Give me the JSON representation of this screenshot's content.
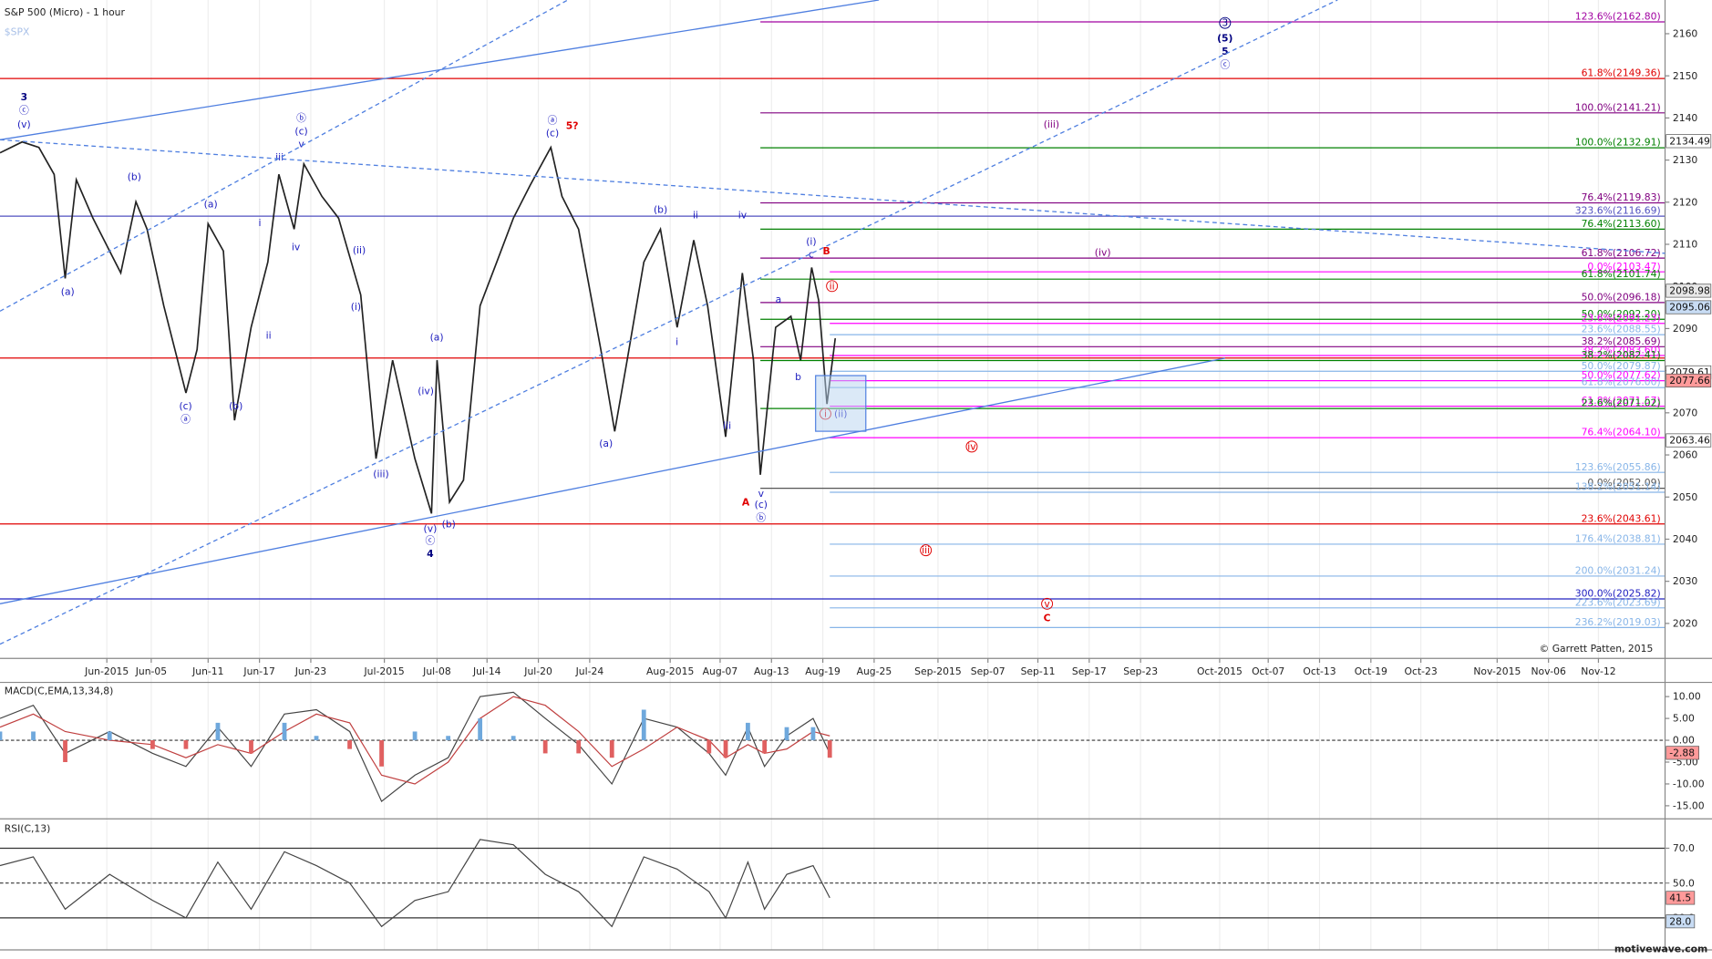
{
  "chart_data": [
    {
      "type": "line",
      "title": "S&P 500 (Micro) - 1 hour",
      "subtitle": "$SPX",
      "credit": "© Garrett Patten, 2015",
      "color": "#222222",
      "xlim": [
        0,
        120
      ],
      "ylim": [
        2011.7,
        2168.0
      ],
      "yticks": [
        2020,
        2030,
        2040,
        2050,
        2060,
        2070,
        2080,
        2090,
        2100,
        2110,
        2120,
        2130,
        2140,
        2150,
        2160
      ],
      "xticks": [
        {
          "value": 7.7,
          "label": "Jun-2015"
        },
        {
          "value": 10.9,
          "label": "Jun-05"
        },
        {
          "value": 15.0,
          "label": "Jun-11"
        },
        {
          "value": 18.7,
          "label": "Jun-17"
        },
        {
          "value": 22.4,
          "label": "Jun-23"
        },
        {
          "value": 27.7,
          "label": "Jul-2015"
        },
        {
          "value": 31.5,
          "label": "Jul-08"
        },
        {
          "value": 35.1,
          "label": "Jul-14"
        },
        {
          "value": 38.8,
          "label": "Jul-20"
        },
        {
          "value": 42.5,
          "label": "Jul-24"
        },
        {
          "value": 48.3,
          "label": "Aug-2015"
        },
        {
          "value": 51.9,
          "label": "Aug-07"
        },
        {
          "value": 55.6,
          "label": "Aug-13"
        },
        {
          "value": 59.3,
          "label": "Aug-19"
        },
        {
          "value": 63.0,
          "label": "Aug-25"
        },
        {
          "value": 67.6,
          "label": "Sep-2015"
        },
        {
          "value": 71.2,
          "label": "Sep-07"
        },
        {
          "value": 74.8,
          "label": "Sep-11"
        },
        {
          "value": 78.5,
          "label": "Sep-17"
        },
        {
          "value": 82.2,
          "label": "Sep-23"
        },
        {
          "value": 87.9,
          "label": "Oct-2015"
        },
        {
          "value": 91.4,
          "label": "Oct-07"
        },
        {
          "value": 95.1,
          "label": "Oct-13"
        },
        {
          "value": 98.8,
          "label": "Oct-19"
        },
        {
          "value": 102.4,
          "label": "Oct-23"
        },
        {
          "value": 107.9,
          "label": "Nov-2015"
        },
        {
          "value": 111.6,
          "label": "Nov-06"
        },
        {
          "value": 115.2,
          "label": "Nov-12"
        }
      ],
      "x": [
        0,
        1.6,
        2.8,
        3.9,
        4.7,
        5.5,
        6.7,
        7.9,
        8.7,
        9.8,
        10.6,
        11.8,
        13.4,
        14.2,
        15.0,
        16.1,
        16.9,
        18.1,
        19.3,
        20.1,
        21.2,
        21.9,
        23.2,
        24.4,
        26.0,
        27.1,
        28.3,
        29.9,
        31.1,
        31.5,
        32.4,
        33.4,
        34.6,
        35.8,
        37.0,
        38.2,
        39.7,
        40.5,
        41.7,
        43.3,
        44.3,
        45.2,
        46.4,
        47.6,
        48.8,
        50.0,
        51.0,
        52.3,
        53.5,
        54.3,
        54.8,
        55.9,
        57.0,
        57.7,
        58.5,
        59.0,
        59.6,
        60.2
      ],
      "values": [
        2131.7,
        2134.3,
        2133.0,
        2126.6,
        2101.9,
        2125.3,
        2116.2,
        2108.4,
        2103.2,
        2120.1,
        2113.6,
        2095.4,
        2074.7,
        2085.0,
        2114.9,
        2108.4,
        2068.2,
        2090.3,
        2105.8,
        2126.6,
        2113.6,
        2129.1,
        2121.4,
        2116.2,
        2098.0,
        2059.1,
        2082.5,
        2059.1,
        2046.1,
        2082.5,
        2048.8,
        2054.0,
        2095.4,
        2105.8,
        2116.2,
        2124.0,
        2133.0,
        2121.4,
        2113.6,
        2085.0,
        2065.6,
        2082.5,
        2105.8,
        2113.6,
        2090.3,
        2111.0,
        2095.4,
        2064.3,
        2103.2,
        2082.5,
        2055.3,
        2090.3,
        2092.9,
        2082.5,
        2104.5,
        2096.7,
        2072.1,
        2087.7
      ],
      "levels": [
        {
          "label": "123.6%(2162.80)",
          "value": 2162.8,
          "color": "#a000a0",
          "start": 54.8
        },
        {
          "label": "61.8%(2149.36)",
          "value": 2149.36,
          "color": "#e00000",
          "start": 0
        },
        {
          "label": "100.0%(2141.21)",
          "value": 2141.21,
          "color": "#800080",
          "start": 54.8
        },
        {
          "label": "100.0%(2132.91)",
          "value": 2132.91,
          "color": "#008000",
          "start": 54.8
        },
        {
          "label": "76.4%(2119.83)",
          "value": 2119.83,
          "color": "#800080",
          "start": 54.8
        },
        {
          "label": "323.6%(2116.69)",
          "value": 2116.69,
          "color": "#5050c0",
          "start": 0
        },
        {
          "label": "76.4%(2113.60)",
          "value": 2113.6,
          "color": "#008000",
          "start": 54.8
        },
        {
          "label": "61.8%(2106.72)",
          "value": 2106.72,
          "color": "#800080",
          "start": 54.8
        },
        {
          "label": "0.0%(2103.47)",
          "value": 2103.47,
          "color": "#ff00ff",
          "start": 59.8
        },
        {
          "label": "61.8%(2101.74)",
          "value": 2101.74,
          "color": "#008000",
          "start": 54.8
        },
        {
          "label": "50.0%(2096.18)",
          "value": 2096.18,
          "color": "#800080",
          "start": 54.8
        },
        {
          "label": "50.0%(2092.20)",
          "value": 2092.2,
          "color": "#008000",
          "start": 54.8
        },
        {
          "label": "23.6%(2091.23)",
          "value": 2091.23,
          "color": "#ff00ff",
          "start": 59.8
        },
        {
          "label": "23.6%(2088.55)",
          "value": 2088.55,
          "color": "#87b5e8",
          "start": 59.8
        },
        {
          "label": "38.2%(2085.69)",
          "value": 2085.69,
          "color": "#800080",
          "start": 54.8
        },
        {
          "label": "38.2%(2083.60)",
          "value": 2083.6,
          "color": "#ff00ff",
          "start": 59.8
        },
        {
          "value": 2083,
          "color": "#e00000",
          "start": 0
        },
        {
          "label": "38.2%(2082.41)",
          "value": 2082.41,
          "color": "#008000",
          "start": 54.8
        },
        {
          "label": "50.0%(2079.87)",
          "value": 2079.87,
          "color": "#87b5e8",
          "start": 59.8
        },
        {
          "label": "50.0%(2077.62)",
          "value": 2077.62,
          "color": "#ff00ff",
          "start": 59.8
        },
        {
          "label": "61.8%(2076.00)",
          "value": 2076.0,
          "color": "#87b5e8",
          "start": 59.8
        },
        {
          "label": "61.8%(2071.57)",
          "value": 2071.57,
          "color": "#ff00ff",
          "start": 59.8
        },
        {
          "label": "23.6%(2071.02)",
          "value": 2071.02,
          "color": "#008000",
          "start": 54.8
        },
        {
          "label": "76.4%(2064.10)",
          "value": 2064.1,
          "color": "#ff00ff",
          "start": 59.8
        },
        {
          "label": "123.6%(2055.86)",
          "value": 2055.86,
          "color": "#87b5e8",
          "start": 59.8
        },
        {
          "label": "0.0%(2052.09)",
          "value": 2052.09,
          "color": "#555555",
          "start": 54.8
        },
        {
          "label": "138.2%(2051.14)",
          "value": 2051.14,
          "color": "#87b5e8",
          "start": 59.8
        },
        {
          "label": "23.6%(2043.61)",
          "value": 2043.61,
          "color": "#e00000",
          "start": 0
        },
        {
          "label": "176.4%(2038.81)",
          "value": 2038.81,
          "color": "#87b5e8",
          "start": 59.8
        },
        {
          "label": "200.0%(2031.24)",
          "value": 2031.24,
          "color": "#87b5e8",
          "start": 59.8
        },
        {
          "label": "300.0%(2025.82)",
          "value": 2025.82,
          "color": "#2020c0",
          "start": 0
        },
        {
          "label": "223.6%(2023.69)",
          "value": 2023.69,
          "color": "#87b5e8",
          "start": 59.8
        },
        {
          "label": "236.2%(2019.03)",
          "value": 2019.03,
          "color": "#87b5e8",
          "start": 59.8
        }
      ],
      "price_badges": [
        {
          "value": 2134.49,
          "color": "#ffffff"
        },
        {
          "value": 2098.98,
          "color": "#e8e8e8"
        },
        {
          "value": 2095.06,
          "color": "#c8dcf4"
        },
        {
          "value": 2079.61,
          "color": "#ffffff"
        },
        {
          "value": 2077.66,
          "color": "#ff9a9a"
        },
        {
          "value": 2063.46,
          "color": "#ffffff"
        }
      ],
      "wave_labels": [
        {
          "text": "3",
          "color": "#000080"
        },
        {
          "text": "ⓒ",
          "color": "#2020c0"
        },
        {
          "text": "(v)",
          "color": "#2020c0"
        },
        {
          "text": "(a)",
          "color": "#2020c0"
        },
        {
          "text": "(b)",
          "color": "#2020c0"
        },
        {
          "text": "(a)",
          "color": "#2020c0"
        },
        {
          "text": "(c)",
          "color": "#2020c0"
        },
        {
          "text": "ⓐ",
          "color": "#2020c0"
        },
        {
          "text": "(b)",
          "color": "#2020c0"
        },
        {
          "text": "i",
          "color": "#2020c0"
        },
        {
          "text": "ii",
          "color": "#2020c0"
        },
        {
          "text": "iii",
          "color": "#2020c0"
        },
        {
          "text": "iv",
          "color": "#2020c0"
        },
        {
          "text": "ⓑ",
          "color": "#2020c0"
        },
        {
          "text": "(c)",
          "color": "#2020c0"
        },
        {
          "text": "v",
          "color": "#2020c0"
        },
        {
          "text": "(ii)",
          "color": "#2020c0"
        },
        {
          "text": "(i)",
          "color": "#2020c0"
        },
        {
          "text": "(iii)",
          "color": "#2020c0"
        },
        {
          "text": "(iv)",
          "color": "#2020c0"
        },
        {
          "text": "(a)",
          "color": "#2020c0"
        },
        {
          "text": "(v)",
          "color": "#2020c0"
        },
        {
          "text": "ⓒ",
          "color": "#2020c0"
        },
        {
          "text": "4",
          "color": "#000080"
        },
        {
          "text": "(b)",
          "color": "#2020c0"
        },
        {
          "text": "ⓐ",
          "color": "#2020c0"
        },
        {
          "text": "(c)",
          "color": "#2020c0"
        },
        {
          "text": "5?",
          "color": "#e00000"
        },
        {
          "text": "(a)",
          "color": "#2020c0"
        },
        {
          "text": "(b)",
          "color": "#2020c0"
        },
        {
          "text": "i",
          "color": "#2020c0"
        },
        {
          "text": "ii",
          "color": "#2020c0"
        },
        {
          "text": "iii",
          "color": "#2020c0"
        },
        {
          "text": "iv",
          "color": "#2020c0"
        },
        {
          "text": "(i)",
          "color": "#2020c0"
        },
        {
          "text": "c",
          "color": "#2020c0"
        },
        {
          "text": "B",
          "color": "#e00000"
        },
        {
          "text": "a",
          "color": "#2020c0"
        },
        {
          "text": "b",
          "color": "#2020c0"
        },
        {
          "text": "ii",
          "color": "#e00000"
        },
        {
          "text": "i",
          "color": "#e00000"
        },
        {
          "text": "(ii)",
          "color": "#2020c0"
        },
        {
          "text": "v",
          "color": "#2020c0"
        },
        {
          "text": "(c)",
          "color": "#2020c0"
        },
        {
          "text": "ⓑ",
          "color": "#2020c0"
        },
        {
          "text": "A",
          "color": "#e00000"
        },
        {
          "text": "(iii)",
          "color": "#800080"
        },
        {
          "text": "(iv)",
          "color": "#800080"
        },
        {
          "text": "iv",
          "color": "#e00000"
        },
        {
          "text": "iii",
          "color": "#e00000"
        },
        {
          "text": "v",
          "color": "#e00000"
        },
        {
          "text": "C",
          "color": "#e00000"
        },
        {
          "text": "3",
          "color": "#000080"
        },
        {
          "text": "(5)",
          "color": "#000080"
        },
        {
          "text": "5",
          "color": "#000080"
        },
        {
          "text": "ⓒ",
          "color": "#2020c0"
        }
      ]
    },
    {
      "type": "macd",
      "title": "MACD(C,EMA,13,34,8)",
      "xlim": [
        0,
        120
      ],
      "ylim": [
        -18,
        12.5
      ],
      "yticks": [
        {
          "value": 10,
          "label": "10.00"
        },
        {
          "value": 5,
          "label": "5.00"
        },
        {
          "value": 0,
          "label": "0.00"
        },
        {
          "value": -5,
          "label": "-5.00"
        },
        {
          "value": -10,
          "label": "-10.00"
        },
        {
          "value": -15,
          "label": "-15.00"
        }
      ],
      "badge": -2.88,
      "x": [
        0,
        2.4,
        4.7,
        7.9,
        11.0,
        13.4,
        15.7,
        18.1,
        20.5,
        22.8,
        25.2,
        27.5,
        29.9,
        32.3,
        34.6,
        37.0,
        39.3,
        41.7,
        44.1,
        46.4,
        48.8,
        51.1,
        52.3,
        53.9,
        55.1,
        56.7,
        58.6,
        59.8
      ],
      "series": [
        {
          "color": "#444444",
          "values": [
            5,
            8,
            -3,
            2,
            -3,
            -6,
            3,
            -6,
            6,
            7,
            2,
            -14,
            -8,
            -4,
            10,
            11,
            5,
            -1,
            -10,
            5,
            3,
            -3,
            -8,
            3,
            -6,
            1,
            5,
            -3
          ]
        },
        {
          "color": "#c04040",
          "values": [
            3,
            6,
            2,
            0,
            -1,
            -4,
            -1,
            -3,
            2,
            6,
            4,
            -8,
            -10,
            -5,
            5,
            10,
            8,
            2,
            -6,
            -2,
            3,
            0,
            -4,
            -1,
            -3,
            -2,
            2,
            1
          ]
        },
        {
          "type": "histogram",
          "color": "#6fa8dc",
          "negative_color": "#e06060",
          "values": [
            2,
            2,
            -5,
            2,
            -2,
            -2,
            4,
            -3,
            4,
            1,
            -2,
            -6,
            2,
            1,
            5,
            1,
            -3,
            -3,
            -4,
            7,
            0,
            -3,
            -4,
            4,
            -3,
            3,
            3,
            -4
          ]
        }
      ]
    },
    {
      "type": "rsi",
      "title": "RSI(C,13)",
      "xlim": [
        0,
        120
      ],
      "ylim": [
        11.6,
        85.6
      ],
      "yticks": [
        {
          "value": 70,
          "label": "70.0"
        },
        {
          "value": 50,
          "label": "50.0"
        },
        {
          "value": 30,
          "label": "30.0"
        }
      ],
      "badges": [
        {
          "value": 41.5,
          "color": "#ff9a9a"
        },
        {
          "value": 28,
          "label": "28.0",
          "color": "#c8dcf4"
        }
      ],
      "x": [
        0,
        2.4,
        4.7,
        7.9,
        11.0,
        13.4,
        15.7,
        18.1,
        20.5,
        22.8,
        25.2,
        27.5,
        29.9,
        32.3,
        34.6,
        37.0,
        39.3,
        41.7,
        44.1,
        46.4,
        48.8,
        51.1,
        52.3,
        53.9,
        55.1,
        56.7,
        58.6,
        59.8
      ],
      "color": "#444444",
      "values": [
        60,
        65,
        35,
        55,
        40,
        30,
        62,
        35,
        68,
        60,
        50,
        25,
        40,
        45,
        75,
        72,
        55,
        45,
        25,
        65,
        58,
        45,
        30,
        62,
        35,
        55,
        60,
        41.5
      ]
    }
  ],
  "footer": "motivewave.com"
}
